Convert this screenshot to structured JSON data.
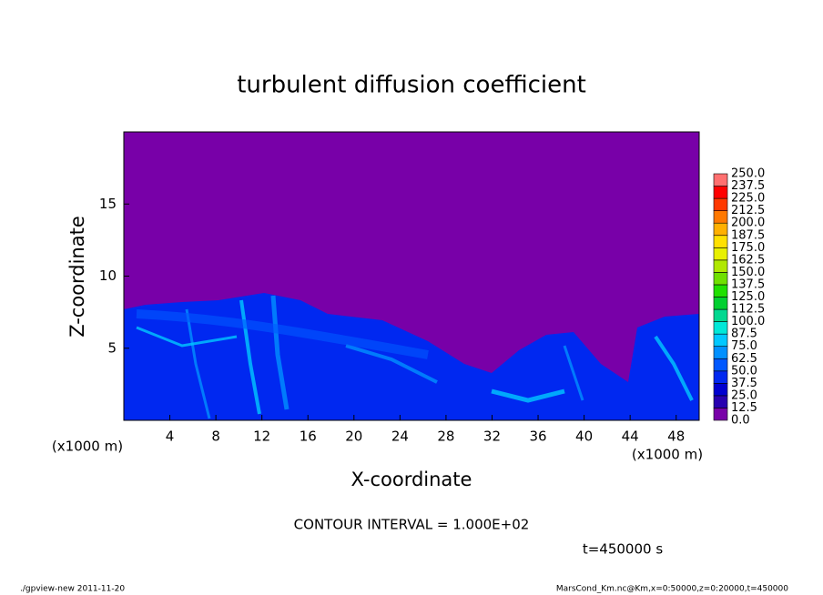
{
  "chart_data": {
    "type": "contour",
    "title": "turbulent diffusion coefficient",
    "x_label": "X-coordinate",
    "y_label": "Z-coordinate",
    "x_unit": "(x1000 m)",
    "y_unit": "(x1000 m)",
    "xlim": [
      0,
      50
    ],
    "xticks": [
      4,
      8,
      12,
      16,
      20,
      24,
      28,
      32,
      36,
      40,
      44,
      48
    ],
    "ylim": [
      0,
      20
    ],
    "yticks": [
      5,
      10,
      15
    ],
    "colorbar": {
      "levels": [
        {
          "value": 0,
          "label": "0.0"
        },
        {
          "value": 12.5,
          "label": "12.5"
        },
        {
          "value": 25,
          "label": "25.0"
        },
        {
          "value": 37.5,
          "label": "37.5"
        },
        {
          "value": 50,
          "label": "50.0"
        },
        {
          "value": 62.5,
          "label": "62.5"
        },
        {
          "value": 75,
          "label": "75.0"
        },
        {
          "value": 87.5,
          "label": "87.5"
        },
        {
          "value": 100,
          "label": "100.0"
        },
        {
          "value": 112.5,
          "label": "112.5"
        },
        {
          "value": 125,
          "label": "125.0"
        },
        {
          "value": 137.5,
          "label": "137.5"
        },
        {
          "value": 150,
          "label": "150.0"
        },
        {
          "value": 162.5,
          "label": "162.5"
        },
        {
          "value": 175,
          "label": "175.0"
        },
        {
          "value": 187.5,
          "label": "187.5"
        },
        {
          "value": 200,
          "label": "200.0"
        },
        {
          "value": 212.5,
          "label": "212.5"
        },
        {
          "value": 225,
          "label": "225.0"
        },
        {
          "value": 237.5,
          "label": "237.5"
        },
        {
          "value": 250,
          "label": "250.0"
        }
      ],
      "colors": [
        "#7800a8",
        "#2800b0",
        "#0000d0",
        "#0028f0",
        "#0058ff",
        "#0090ff",
        "#00c8ff",
        "#00e8d8",
        "#00d890",
        "#00d030",
        "#20e000",
        "#70e000",
        "#b0e800",
        "#e8f000",
        "#ffe000",
        "#ffb000",
        "#ff7800",
        "#ff3800",
        "#ff0000",
        "#ff7070"
      ]
    },
    "contour_interval": "CONTOUR INTERVAL = 1.000E+02",
    "time_label": "t=450000 s",
    "footer_left": "./gpview-new   2011-11-20",
    "footer_right": "MarsCond_Km.nc@Km,x=0:50000,z=0:20000,t=450000"
  }
}
